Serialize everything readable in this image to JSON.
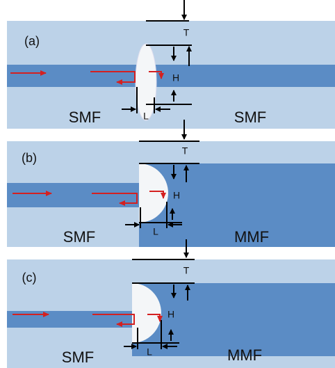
{
  "panels": [
    {
      "label": "(a)",
      "t": "T",
      "h": "H",
      "l": "L",
      "left": "SMF",
      "right": "SMF"
    },
    {
      "label": "(b)",
      "t": "T",
      "h": "H",
      "l": "L",
      "left": "SMF",
      "right": "MMF"
    },
    {
      "label": "(c)",
      "t": "T",
      "h": "H",
      "l": "L",
      "left": "SMF",
      "right": "MMF"
    }
  ]
}
